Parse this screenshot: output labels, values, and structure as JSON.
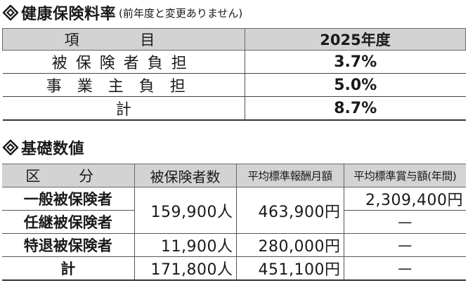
{
  "section1": {
    "title": "健康保険料率",
    "note": "(前年度と変更ありません)",
    "header": [
      "項 目",
      "2025年度"
    ],
    "rows": [
      {
        "label": "被保険者負担",
        "value": "3.7%"
      },
      {
        "label": "事業主負担",
        "value": "5.0%"
      },
      {
        "label": "計",
        "value": "8.7%"
      }
    ]
  },
  "section2": {
    "title": "基礎数値",
    "header": [
      "区 分",
      "被保険者数",
      "平均標準報酬月額",
      "平均標準賞与額(年間)"
    ],
    "rows": {
      "general": {
        "label": "一般被保険者",
        "bonus": "2,309,400円"
      },
      "voluntary": {
        "label": "任継被保険者",
        "bonus": "—"
      },
      "merged": {
        "count": "159,900人",
        "monthly": "463,900円"
      },
      "retired": {
        "label": "特退被保険者",
        "count": "11,900人",
        "monthly": "280,000円",
        "bonus": "—"
      },
      "total": {
        "label": "計",
        "count": "171,800人",
        "monthly": "451,100円",
        "bonus": "—"
      }
    }
  },
  "colors": {
    "header_bg": "#d3d3d3",
    "border": "#555555",
    "text": "#1a1a1a"
  },
  "icons": {
    "heading_marker": "diamond-arrows-icon"
  }
}
